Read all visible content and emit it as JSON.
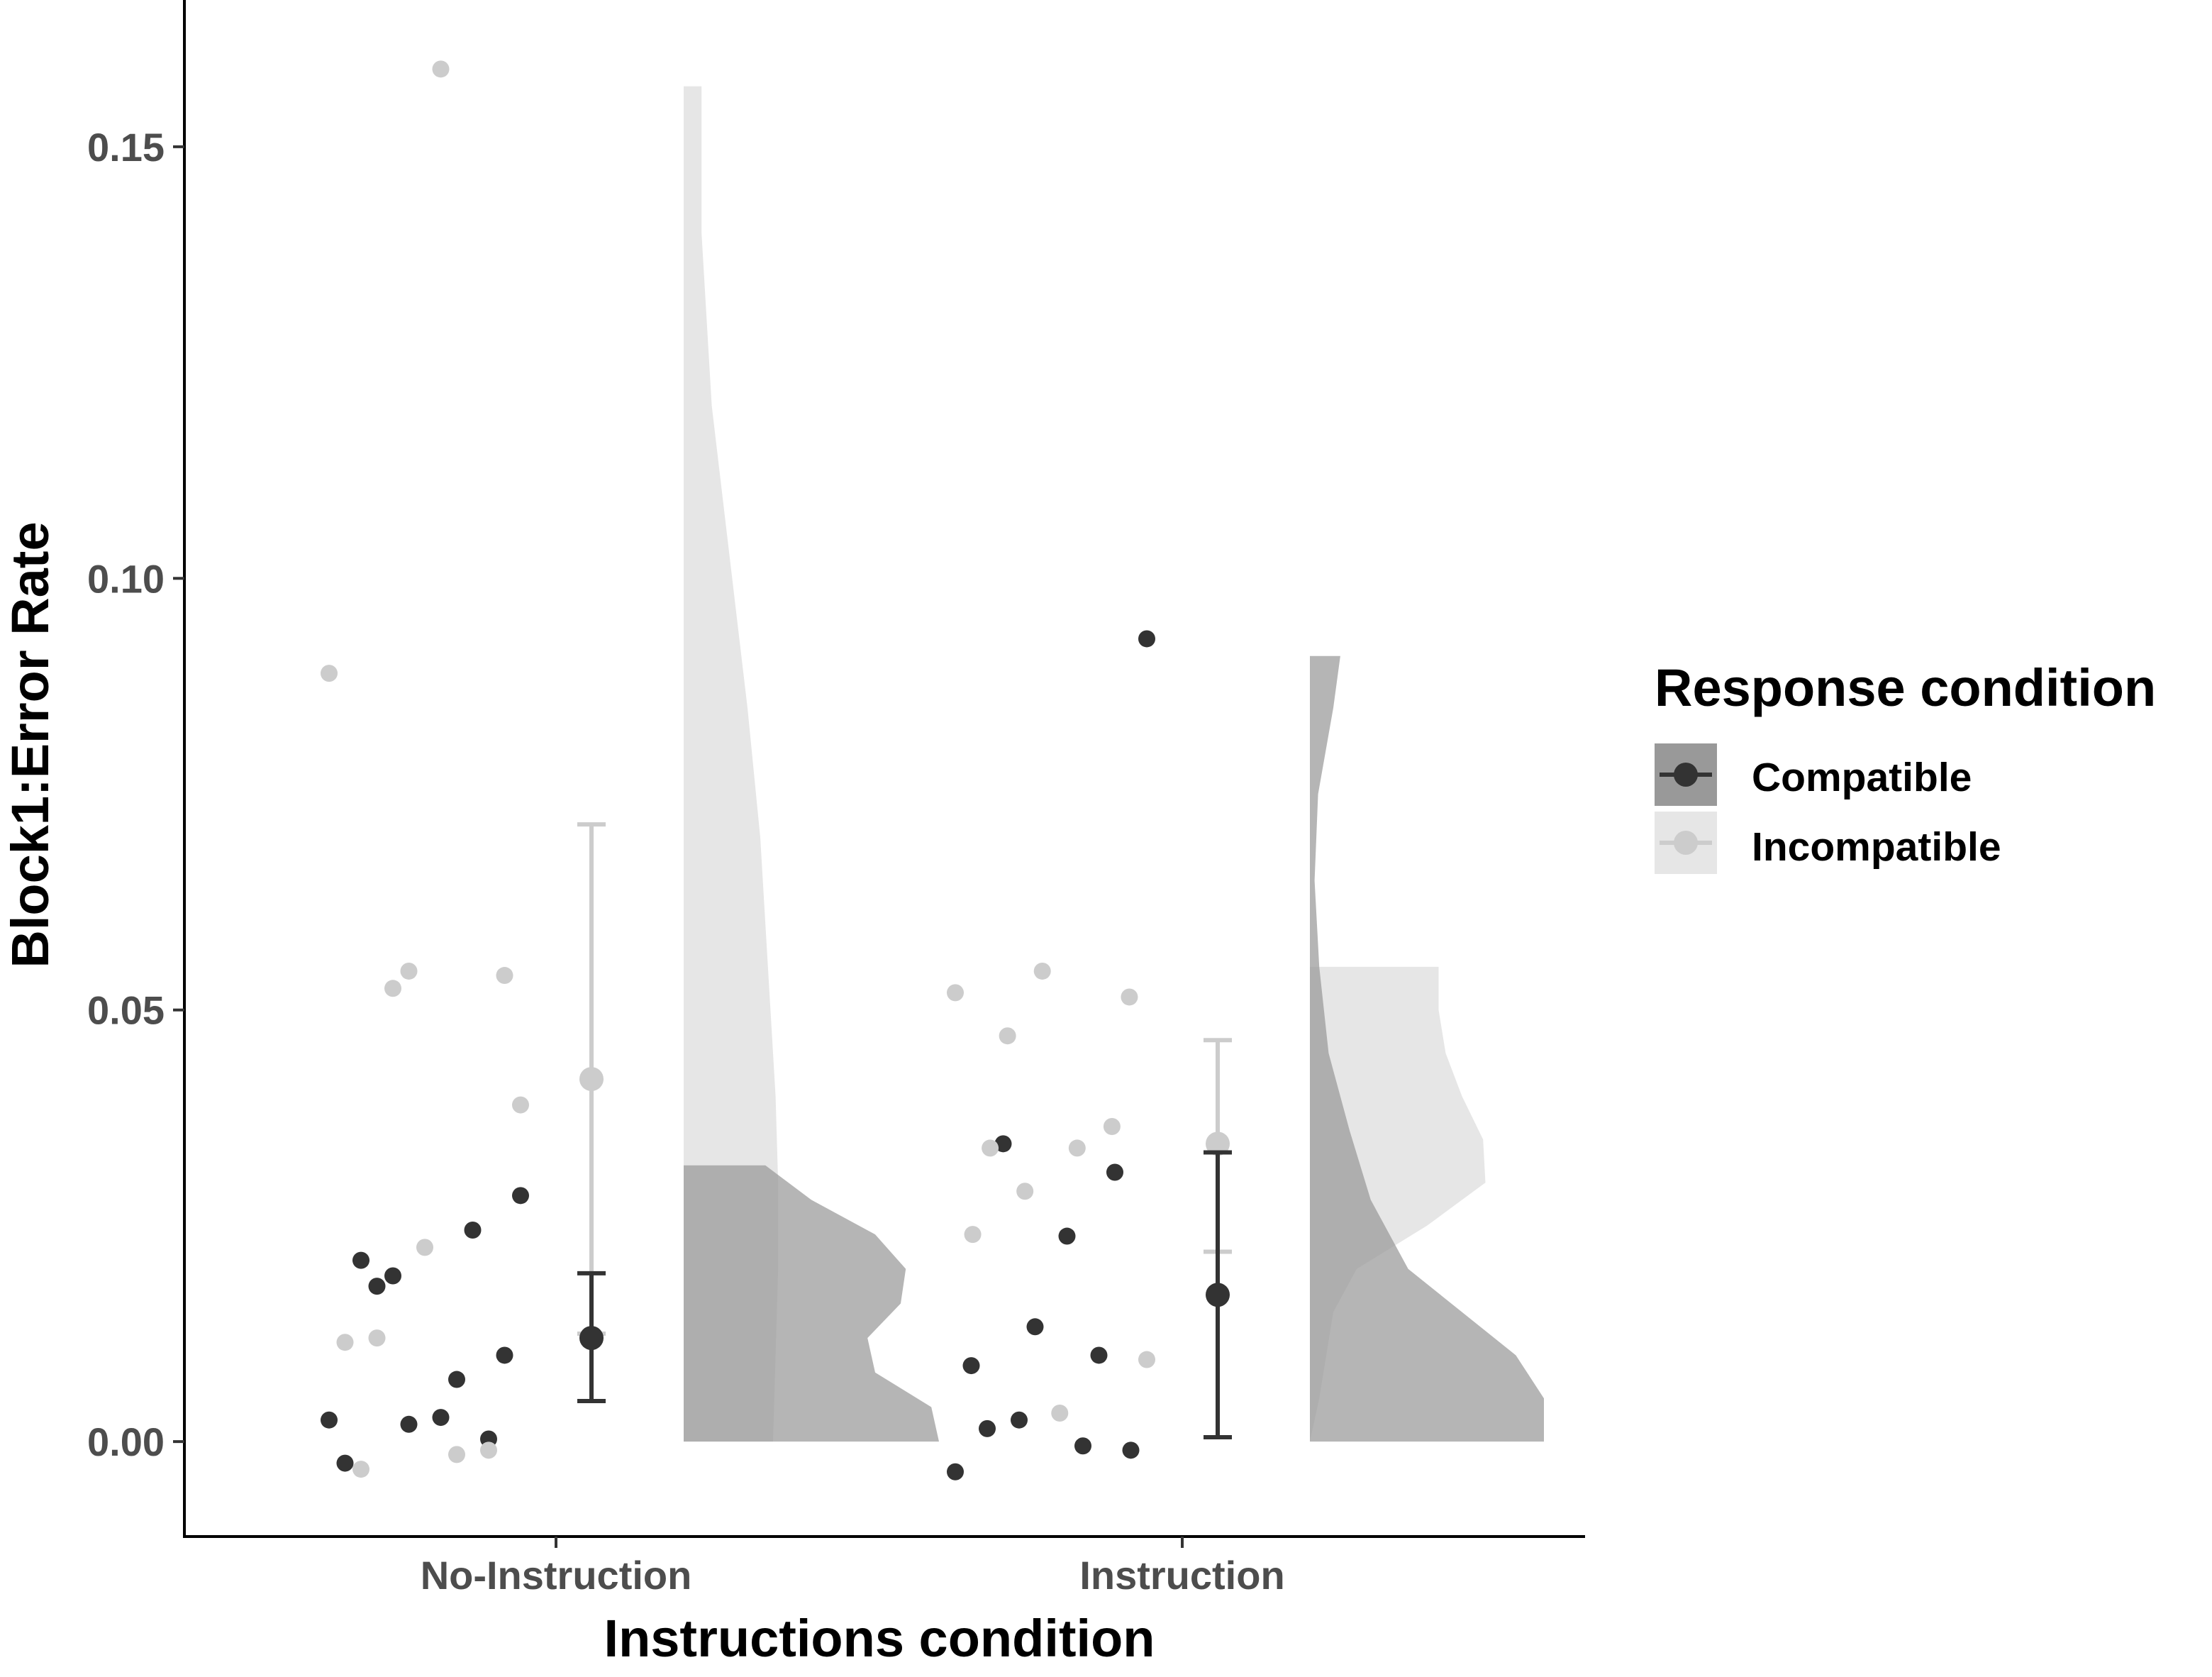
{
  "colors": {
    "compatible_point": "#333333",
    "incompatible_point": "#cccccc",
    "compatible_fill": "#999999",
    "incompatible_fill": "#e6e6e6",
    "overlap_fill": "#b3b3b3"
  },
  "chart_data": {
    "type": "raincloud",
    "xlabel": "Instructions condition",
    "ylabel": "Block1:Error Rate",
    "categories": [
      "No-Instruction",
      "Instruction"
    ],
    "ylim": [
      -0.011,
      0.167
    ],
    "yticks": [
      0.0,
      0.05,
      0.1,
      0.15
    ],
    "ytick_labels": [
      "0.00",
      "0.05",
      "0.10",
      "0.15"
    ],
    "grid": false,
    "legend": {
      "title": "Response condition",
      "position": "right",
      "entries": [
        "Compatible",
        "Incompatible"
      ]
    },
    "series": [
      {
        "name": "Compatible",
        "points": [
          {
            "category": "No-Instruction",
            "values": [
              0.0025,
              0.0028,
              -0.0025,
              0.0072,
              0.021,
              0.0245,
              0.018,
              0.0003,
              0.0192,
              0.01,
              0.002,
              0.0285
            ]
          },
          {
            "category": "Instruction",
            "values": [
              -0.0035,
              0.0238,
              0.0088,
              -0.0005,
              0.0015,
              0.01,
              0.0345,
              0.0312,
              0.0025,
              -0.001,
              0.0133,
              0.093
            ]
          }
        ],
        "summary": [
          {
            "category": "No-Instruction",
            "mean": 0.012,
            "lower": 0.0047,
            "upper": 0.0195
          },
          {
            "category": "Instruction",
            "mean": 0.017,
            "lower": 0.0005,
            "upper": 0.0335
          }
        ],
        "density": [
          {
            "category": "No-Instruction",
            "ymin": 0.0,
            "ymax": 0.032,
            "profile": [
              [
                0.0,
                1.0
              ],
              [
                0.004,
                0.97
              ],
              [
                0.008,
                0.75
              ],
              [
                0.012,
                0.72
              ],
              [
                0.016,
                0.85
              ],
              [
                0.02,
                0.87
              ],
              [
                0.024,
                0.75
              ],
              [
                0.028,
                0.5
              ],
              [
                0.032,
                0.32
              ]
            ]
          },
          {
            "category": "Instruction",
            "ymin": 0.0,
            "ymax": 0.091,
            "profile": [
              [
                0.0,
                1.0
              ],
              [
                0.005,
                1.0
              ],
              [
                0.01,
                0.88
              ],
              [
                0.015,
                0.65
              ],
              [
                0.02,
                0.42
              ],
              [
                0.028,
                0.26
              ],
              [
                0.036,
                0.17
              ],
              [
                0.045,
                0.08
              ],
              [
                0.055,
                0.04
              ],
              [
                0.065,
                0.02
              ],
              [
                0.075,
                0.035
              ],
              [
                0.085,
                0.1
              ],
              [
                0.091,
                0.13
              ]
            ]
          }
        ]
      },
      {
        "name": "Incompatible",
        "points": [
          {
            "category": "No-Instruction",
            "values": [
              0.012,
              -0.001,
              0.0525,
              0.054,
              0.0545,
              0.039,
              0.0225,
              0.089,
              0.159,
              0.0115,
              -0.0015,
              -0.0032
            ]
          },
          {
            "category": "Instruction",
            "values": [
              0.047,
              0.0515,
              0.0545,
              0.052,
              0.034,
              0.034,
              0.0365,
              0.029,
              0.0095,
              0.0033,
              0.024
            ]
          }
        ],
        "summary": [
          {
            "category": "No-Instruction",
            "mean": 0.042,
            "lower": 0.0125,
            "upper": 0.0715
          },
          {
            "category": "Instruction",
            "mean": 0.0345,
            "lower": 0.022,
            "upper": 0.0465
          }
        ],
        "density": [
          {
            "category": "No-Instruction",
            "ymin": 0.0,
            "ymax": 0.157,
            "profile": [
              [
                0.0,
                0.35
              ],
              [
                0.01,
                0.36
              ],
              [
                0.02,
                0.37
              ],
              [
                0.03,
                0.37
              ],
              [
                0.04,
                0.36
              ],
              [
                0.055,
                0.33
              ],
              [
                0.07,
                0.3
              ],
              [
                0.085,
                0.25
              ],
              [
                0.1,
                0.19
              ],
              [
                0.12,
                0.11
              ],
              [
                0.14,
                0.07
              ],
              [
                0.157,
                0.07
              ]
            ]
          },
          {
            "category": "Instruction",
            "ymin": 0.0,
            "ymax": 0.055,
            "profile": [
              [
                0.0,
                0.0
              ],
              [
                0.005,
                0.04
              ],
              [
                0.01,
                0.07
              ],
              [
                0.015,
                0.1
              ],
              [
                0.02,
                0.2
              ],
              [
                0.025,
                0.5
              ],
              [
                0.03,
                0.75
              ],
              [
                0.035,
                0.74
              ],
              [
                0.04,
                0.65
              ],
              [
                0.045,
                0.58
              ],
              [
                0.05,
                0.55
              ],
              [
                0.055,
                0.55
              ]
            ]
          }
        ]
      }
    ]
  }
}
